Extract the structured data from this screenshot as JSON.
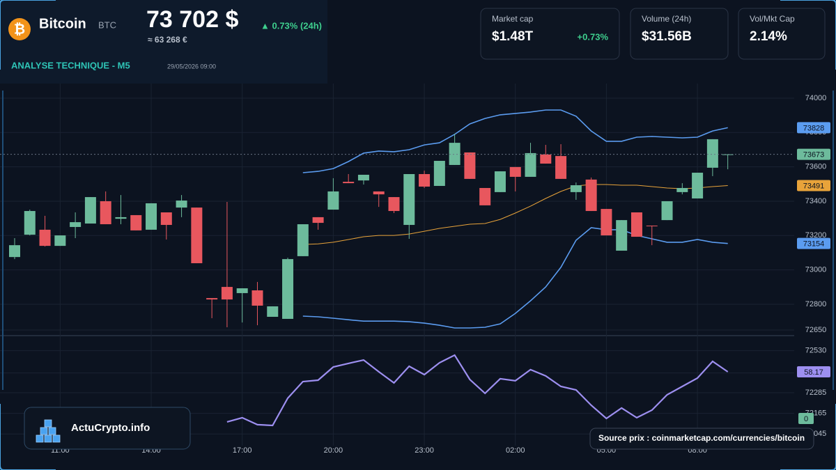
{
  "header": {
    "logo_symbol": "₿",
    "name": "Bitcoin",
    "ticker": "BTC",
    "price": "73 702 $",
    "price_eur": "≈ 63 268 €",
    "change": "▲ 0.73% (24h)",
    "section": "ANALYSE TECHNIQUE - M5",
    "datetime": "29/05/2026 09:00"
  },
  "cards": [
    {
      "label": "Market cap",
      "value": "$1.48T",
      "change": "+0.73%"
    },
    {
      "label": "Volume (24h)",
      "value": "$31.56B"
    },
    {
      "label": "Vol/Mkt Cap",
      "value": "2.14%"
    }
  ],
  "footer": {
    "brand": "ActuCrypto.info",
    "source": "Source prix : coinmarketcap.com/currencies/bitcoin"
  },
  "chart_data": {
    "type": "candlestick",
    "categories": [
      null,
      null,
      null,
      "11:00",
      null,
      null,
      null,
      null,
      null,
      "14:00",
      null,
      null,
      null,
      null,
      null,
      "17:00",
      null,
      null,
      null,
      null,
      null,
      "20:00",
      null,
      null,
      null,
      null,
      null,
      "23:00",
      null,
      null,
      null,
      null,
      null,
      "02:00",
      null,
      null,
      null,
      null,
      null,
      "05:00",
      null,
      null,
      null,
      null,
      null,
      "08:00",
      null,
      null
    ],
    "open": [
      73075,
      73205,
      73234,
      73140,
      73250,
      73270,
      73400,
      73298,
      73319,
      73234,
      73335,
      73363,
      73363,
      72836,
      72901,
      72865,
      72881,
      72727,
      72715,
      73080,
      73307,
      73351,
      73513,
      73521,
      73457,
      73424,
      73262,
      73558,
      73489,
      73611,
      73684,
      73477,
      73453,
      73599,
      73542,
      73672,
      73663,
      73453,
      73526,
      73355,
      73112,
      73335,
      73258,
      73290,
      73453,
      73416,
      73595,
      73673
    ],
    "high": [
      73185,
      73351,
      73315,
      73201,
      73335,
      73424,
      73457,
      73436,
      73319,
      73388,
      73335,
      73436,
      73363,
      72836,
      73396,
      72893,
      72930,
      72788,
      73071,
      73266,
      73307,
      73534,
      73558,
      73554,
      73457,
      73424,
      73558,
      73578,
      73635,
      73793,
      73684,
      73477,
      73574,
      73599,
      73740,
      73728,
      73732,
      73509,
      73538,
      73355,
      73290,
      73335,
      73258,
      73400,
      73505,
      73566,
      73761,
      73673
    ],
    "low": [
      73063,
      73201,
      73136,
      73140,
      73185,
      73270,
      73266,
      73266,
      73230,
      73234,
      73177,
      73307,
      73039,
      72719,
      72666,
      72694,
      72678,
      72727,
      72715,
      73080,
      73234,
      73351,
      73505,
      73497,
      73367,
      73331,
      73181,
      73477,
      73489,
      73611,
      73530,
      73376,
      73453,
      73457,
      73542,
      73619,
      73530,
      73408,
      73343,
      73201,
      73112,
      73193,
      73144,
      73290,
      73440,
      73416,
      73546,
      73586
    ],
    "close": [
      73144,
      73343,
      73140,
      73201,
      73278,
      73424,
      73266,
      73307,
      73230,
      73388,
      73262,
      73404,
      73039,
      72828,
      72828,
      72893,
      72792,
      72788,
      73063,
      73266,
      73274,
      73457,
      73505,
      73554,
      73440,
      73343,
      73558,
      73485,
      73635,
      73740,
      73530,
      73376,
      73574,
      73542,
      73680,
      73619,
      73530,
      73493,
      73343,
      73201,
      73290,
      73193,
      73254,
      73400,
      73477,
      73566,
      73761,
      73673
    ],
    "up_color": "#6dbb9c",
    "down_color": "#e8575e",
    "bands": {
      "upper": [
        null,
        null,
        null,
        null,
        null,
        null,
        null,
        null,
        null,
        null,
        null,
        null,
        null,
        null,
        null,
        null,
        null,
        null,
        null,
        73566,
        73574,
        73590,
        73631,
        73680,
        73692,
        73688,
        73700,
        73728,
        73740,
        73789,
        73850,
        73882,
        73903,
        73911,
        73919,
        73931,
        73931,
        73895,
        73809,
        73749,
        73749,
        73773,
        73777,
        73773,
        73769,
        73773,
        73809,
        73828
      ],
      "middle": [
        null,
        null,
        null,
        null,
        null,
        null,
        null,
        null,
        null,
        null,
        null,
        null,
        null,
        null,
        null,
        null,
        null,
        null,
        null,
        73148,
        73152,
        73161,
        73177,
        73193,
        73201,
        73201,
        73209,
        73225,
        73242,
        73254,
        73266,
        73270,
        73294,
        73331,
        73371,
        73416,
        73457,
        73489,
        73497,
        73497,
        73493,
        73493,
        73485,
        73477,
        73473,
        73477,
        73485,
        73491
      ],
      "lower": [
        null,
        null,
        null,
        null,
        null,
        null,
        null,
        null,
        null,
        null,
        null,
        null,
        null,
        null,
        null,
        null,
        null,
        null,
        null,
        72731,
        72727,
        72719,
        72710,
        72702,
        72702,
        72702,
        72698,
        72690,
        72678,
        72662,
        72662,
        72666,
        72686,
        72747,
        72820,
        72901,
        73015,
        73173,
        73246,
        73234,
        73234,
        73201,
        73181,
        73161,
        73161,
        73177,
        73161,
        73154
      ],
      "band_color": "#5b9cf0",
      "middle_color": "#e8a33a"
    },
    "series": [
      {
        "axis": "y2",
        "color": "#9d8ff0",
        "values": [
          null,
          null,
          null,
          null,
          null,
          null,
          null,
          null,
          null,
          null,
          null,
          null,
          null,
          null,
          -4.3,
          0.9,
          -7.8,
          -8.7,
          25.2,
          46.0,
          47.7,
          64.2,
          68.6,
          72.9,
          58.2,
          44.3,
          65.1,
          54.7,
          69.4,
          79.0,
          48.6,
          31.3,
          49.5,
          46.9,
          60.8,
          53.0,
          39.9,
          35.6,
          16.5,
          0,
          13.0,
          0.9,
          10.4,
          29.5,
          39.9,
          50.3,
          71.2,
          58.17
        ]
      }
    ],
    "ylim": [
      71977,
      74085
    ],
    "yticks": [
      74000,
      73800,
      73600,
      73400,
      73200,
      73000,
      72800,
      72650,
      72530,
      72400,
      72285,
      72165,
      72045
    ],
    "y2lim": [
      -33.9,
      417.6
    ],
    "y2ticks": [
      0
    ],
    "grid": true
  }
}
